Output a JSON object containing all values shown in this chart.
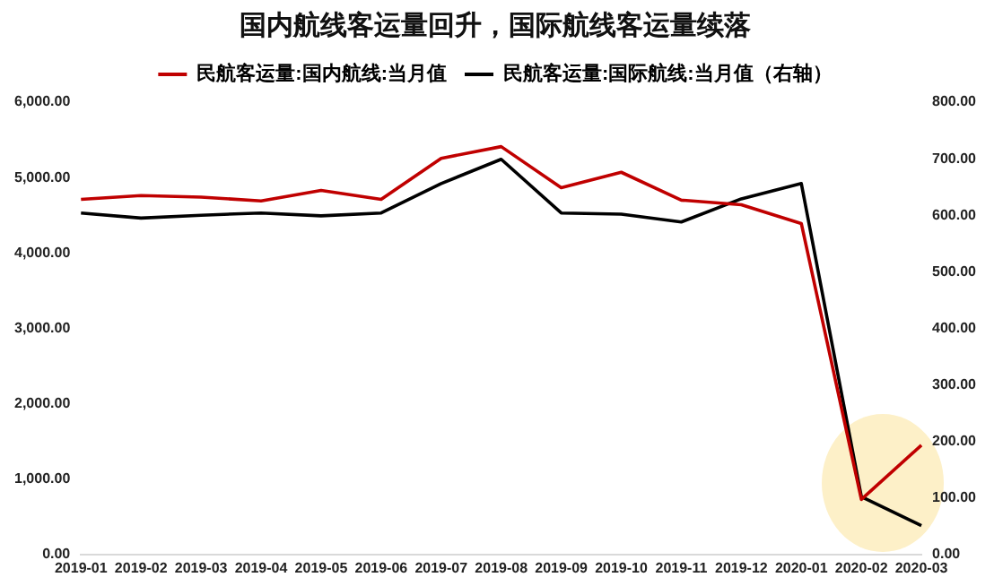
{
  "chart_data": {
    "type": "line",
    "title": "国内航线客运量回升，国际航线客运量续落",
    "categories": [
      "2019-01",
      "2019-02",
      "2019-03",
      "2019-04",
      "2019-05",
      "2019-06",
      "2019-07",
      "2019-08",
      "2019-09",
      "2019-10",
      "2019-11",
      "2019-12",
      "2020-01",
      "2020-02",
      "2020-03"
    ],
    "series": [
      {
        "name": "民航客运量:国内航线:当月值",
        "color": "#c00000",
        "values": [
          4710,
          4760,
          4740,
          4690,
          4830,
          4710,
          5255,
          5410,
          4865,
          5070,
          4700,
          4640,
          4390,
          730,
          1450
        ]
      },
      {
        "name": "民航客运量:国际航线:当月值（右轴）",
        "color": "#000000",
        "axis": "y2",
        "values": [
          604,
          595,
          600,
          604,
          599,
          604,
          656,
          699,
          604,
          602,
          588,
          629,
          656,
          102,
          51
        ]
      }
    ],
    "ylim": [
      0,
      6000
    ],
    "yticks": [
      {
        "value": 0,
        "label": "0.00"
      },
      {
        "value": 1000,
        "label": "1,000.00"
      },
      {
        "value": 2000,
        "label": "2,000.00"
      },
      {
        "value": 3000,
        "label": "3,000.00"
      },
      {
        "value": 4000,
        "label": "4,000.00"
      },
      {
        "value": 5000,
        "label": "5,000.00"
      },
      {
        "value": 6000,
        "label": "6,000.00"
      }
    ],
    "y2lim": [
      0,
      800
    ],
    "y2ticks": [
      {
        "value": 0,
        "label": "0.00"
      },
      {
        "value": 100,
        "label": "100.00"
      },
      {
        "value": 200,
        "label": "200.00"
      },
      {
        "value": 300,
        "label": "300.00"
      },
      {
        "value": 400,
        "label": "400.00"
      },
      {
        "value": 500,
        "label": "500.00"
      },
      {
        "value": 600,
        "label": "600.00"
      },
      {
        "value": 700,
        "label": "700.00"
      },
      {
        "value": 800,
        "label": "800.00"
      }
    ],
    "grid": false,
    "legend": "top",
    "marker": "none",
    "line_style": "solid"
  }
}
